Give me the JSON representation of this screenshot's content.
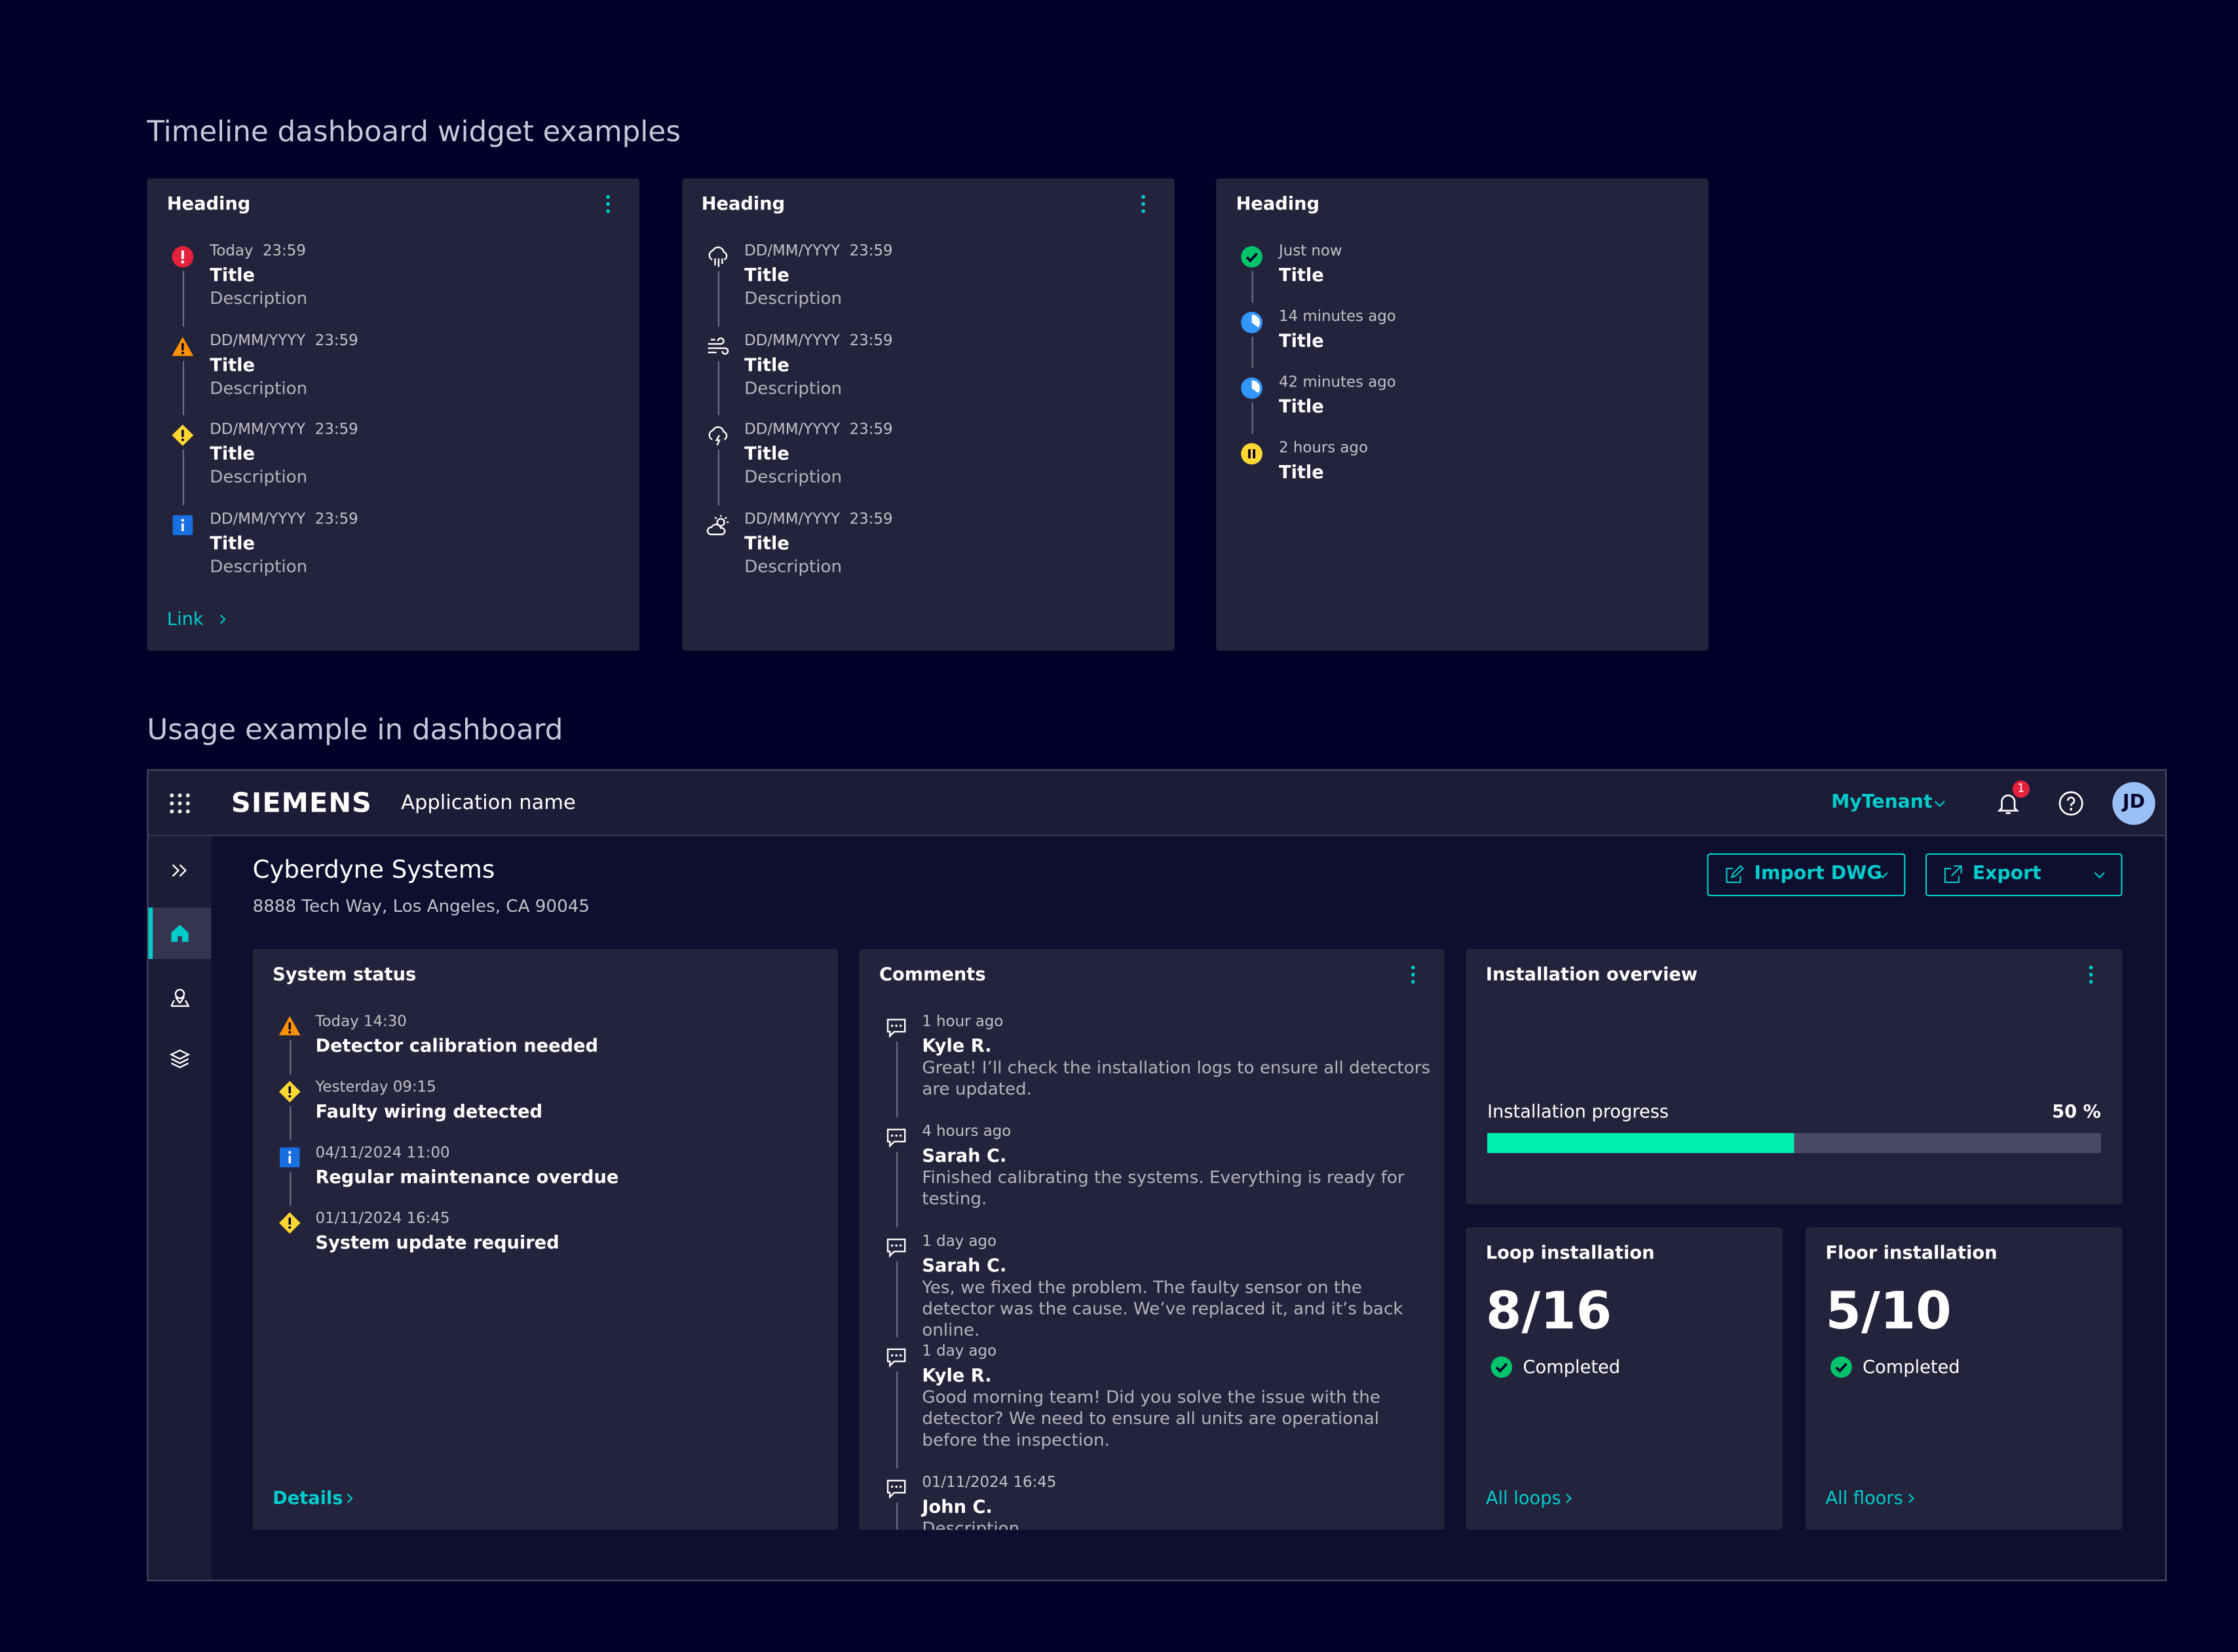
{
  "sections": {
    "widgets_title": "Timeline dashboard widget examples",
    "usage_title": "Usage example in dashboard"
  },
  "widgets": [
    {
      "heading": "Heading",
      "items": [
        {
          "time": "Today  23:59",
          "title": "Title",
          "description": "Description"
        },
        {
          "time": "DD/MM/YYYY  23:59",
          "title": "Title",
          "description": "Description"
        },
        {
          "time": "DD/MM/YYYY  23:59",
          "title": "Title",
          "description": "Description"
        },
        {
          "time": "DD/MM/YYYY  23:59",
          "title": "Title",
          "description": "Description"
        }
      ],
      "link": "Link"
    },
    {
      "heading": "Heading",
      "items": [
        {
          "time": "DD/MM/YYYY  23:59",
          "title": "Title",
          "description": "Description"
        },
        {
          "time": "DD/MM/YYYY  23:59",
          "title": "Title",
          "description": "Description"
        },
        {
          "time": "DD/MM/YYYY  23:59",
          "title": "Title",
          "description": "Description"
        },
        {
          "time": "DD/MM/YYYY  23:59",
          "title": "Title",
          "description": "Description"
        }
      ]
    },
    {
      "heading": "Heading",
      "items": [
        {
          "time": "Just now",
          "title": "Title"
        },
        {
          "time": "14 minutes ago",
          "title": "Title"
        },
        {
          "time": "42 minutes ago",
          "title": "Title"
        },
        {
          "time": "2 hours ago",
          "title": "Title"
        }
      ]
    }
  ],
  "app": {
    "header": {
      "brand": "SIEMENS",
      "app_name": "Application name",
      "tenant": "MyTenant",
      "notifications": "1",
      "avatar": "JD"
    },
    "page": {
      "title": "Cyberdyne Systems",
      "address": "8888 Tech Way, Los Angeles, CA 90045",
      "buttons": [
        "Import DWG",
        "Export"
      ]
    },
    "system_status": {
      "heading": "System status",
      "items": [
        {
          "time": "Today 14:30",
          "title": "Detector calibration needed"
        },
        {
          "time": "Yesterday 09:15",
          "title": "Faulty wiring detected"
        },
        {
          "time": "04/11/2024 11:00",
          "title": "Regular maintenance overdue"
        },
        {
          "time": "01/11/2024 16:45",
          "title": "System update required"
        }
      ],
      "link": "Details"
    },
    "comments": {
      "heading": "Comments",
      "items": [
        {
          "time": "1 hour ago",
          "author": "Kyle R.",
          "text": "Great! I’ll check the installation logs to ensure all detectors are updated."
        },
        {
          "time": "4 hours ago",
          "author": "Sarah C.",
          "text": "Finished calibrating the systems. Everything is ready for testing."
        },
        {
          "time": "1 day ago",
          "author": "Sarah C.",
          "text": "Yes, we fixed the problem. The faulty sensor on the detector was the cause. We’ve replaced it, and it’s back online."
        },
        {
          "time": "1 day ago",
          "author": "Kyle R.",
          "text": "Good morning team! Did you solve the issue with the detector? We need to ensure all units are operational before the inspection."
        },
        {
          "time": "01/11/2024 16:45",
          "author": "John C.",
          "text": "Description"
        }
      ]
    },
    "installation_overview": {
      "heading": "Installation overview",
      "progress": {
        "label": "Installation progress",
        "value": 50,
        "value_label": "50 %"
      }
    },
    "tiles": [
      {
        "heading": "Loop installation",
        "value": "8/16",
        "status": "Completed",
        "link": "All loops"
      },
      {
        "heading": "Floor installation",
        "value": "5/10",
        "status": "Completed",
        "link": "All floors"
      }
    ]
  }
}
